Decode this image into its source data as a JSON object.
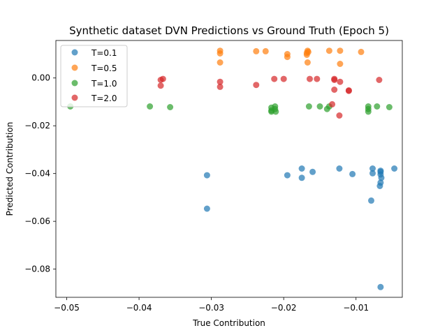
{
  "chart_data": {
    "type": "scatter",
    "title": "Synthetic dataset DVN Predictions vs Ground Truth (Epoch 5)",
    "xlabel": "True Contribution",
    "ylabel": "Predicted Contribution",
    "xlim": [
      -0.0515,
      -0.0036
    ],
    "ylim": [
      -0.0918,
      0.0157
    ],
    "xticks": [
      -0.05,
      -0.04,
      -0.03,
      -0.02,
      -0.01
    ],
    "xtick_labels": [
      "−0.05",
      "−0.04",
      "−0.03",
      "−0.02",
      "−0.01"
    ],
    "yticks": [
      0.0,
      -0.02,
      -0.04,
      -0.06,
      -0.08
    ],
    "ytick_labels": [
      "0.00",
      "−0.02",
      "−0.04",
      "−0.06",
      "−0.08"
    ],
    "legend_position": "top-left",
    "series": [
      {
        "name": "T=0.1",
        "color": "#1f77b4",
        "points": [
          [
            -0.0306,
            -0.0407
          ],
          [
            -0.0306,
            -0.0547
          ],
          [
            -0.0195,
            -0.0407
          ],
          [
            -0.0175,
            -0.0379
          ],
          [
            -0.0175,
            -0.0418
          ],
          [
            -0.016,
            -0.0393
          ],
          [
            -0.0123,
            -0.0379
          ],
          [
            -0.0105,
            -0.0402
          ],
          [
            -0.0077,
            -0.0379
          ],
          [
            -0.0077,
            -0.0399
          ],
          [
            -0.0079,
            -0.0513
          ],
          [
            -0.0066,
            -0.0388
          ],
          [
            -0.0066,
            -0.0393
          ],
          [
            -0.0066,
            -0.0404
          ],
          [
            -0.0065,
            -0.0418
          ],
          [
            -0.0066,
            -0.0438
          ],
          [
            -0.0067,
            -0.0452
          ],
          [
            -0.0047,
            -0.0379
          ],
          [
            -0.0066,
            -0.0875
          ]
        ]
      },
      {
        "name": "T=0.5",
        "color": "#ff7f0e",
        "points": [
          [
            -0.0288,
            0.0114
          ],
          [
            -0.0288,
            0.0103
          ],
          [
            -0.0288,
            0.0065
          ],
          [
            -0.0238,
            0.0112
          ],
          [
            -0.0225,
            0.0112
          ],
          [
            -0.0195,
            0.01
          ],
          [
            -0.0195,
            0.0088
          ],
          [
            -0.0167,
            0.0114
          ],
          [
            -0.0166,
            0.0109
          ],
          [
            -0.0168,
            0.0105
          ],
          [
            -0.0168,
            0.0097
          ],
          [
            -0.0167,
            0.0065
          ],
          [
            -0.0137,
            0.0114
          ],
          [
            -0.0122,
            0.0114
          ],
          [
            -0.0122,
            0.0059
          ],
          [
            -0.0093,
            0.0109
          ]
        ]
      },
      {
        "name": "T=1.0",
        "color": "#2ca02c",
        "points": [
          [
            -0.0495,
            -0.0119
          ],
          [
            -0.0385,
            -0.0119
          ],
          [
            -0.0357,
            -0.0122
          ],
          [
            -0.0217,
            -0.0124
          ],
          [
            -0.0217,
            -0.0136
          ],
          [
            -0.0212,
            -0.0119
          ],
          [
            -0.0212,
            -0.013
          ],
          [
            -0.0211,
            -0.0141
          ],
          [
            -0.0217,
            -0.0141
          ],
          [
            -0.0165,
            -0.0119
          ],
          [
            -0.015,
            -0.0119
          ],
          [
            -0.014,
            -0.013
          ],
          [
            -0.0137,
            -0.0119
          ],
          [
            -0.0083,
            -0.0119
          ],
          [
            -0.0083,
            -0.013
          ],
          [
            -0.0083,
            -0.0141
          ],
          [
            -0.0071,
            -0.0119
          ],
          [
            -0.0054,
            -0.0122
          ]
        ]
      },
      {
        "name": "T=2.0",
        "color": "#d62728",
        "points": [
          [
            -0.0367,
            -0.0004
          ],
          [
            -0.037,
            -0.0008
          ],
          [
            -0.037,
            -0.0032
          ],
          [
            -0.0288,
            -0.0016
          ],
          [
            -0.0288,
            -0.0037
          ],
          [
            -0.0238,
            -0.0029
          ],
          [
            -0.0213,
            -0.0004
          ],
          [
            -0.02,
            -0.0004
          ],
          [
            -0.0164,
            -0.0004
          ],
          [
            -0.0154,
            -0.0004
          ],
          [
            -0.013,
            -0.0004
          ],
          [
            -0.013,
            -0.0008
          ],
          [
            -0.013,
            -0.0049
          ],
          [
            -0.0133,
            -0.011
          ],
          [
            -0.0122,
            -0.0016
          ],
          [
            -0.011,
            -0.0052
          ],
          [
            -0.011,
            -0.0054
          ],
          [
            -0.0123,
            -0.0157
          ],
          [
            -0.0068,
            -0.0008
          ]
        ]
      }
    ]
  }
}
